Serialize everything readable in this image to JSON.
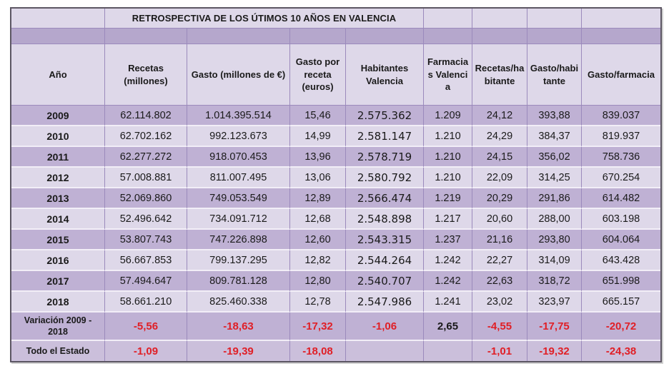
{
  "chart_data": {
    "type": "table",
    "title": "RETROSPECTIVA DE LOS ÚTIMOS 10 AÑOS EN VALENCIA",
    "columns": [
      "Año",
      "Recetas (millones)",
      "Gasto (millones de €)",
      "Gasto por receta (euros)",
      "Habitantes Valencia",
      "Farmacias Valencia",
      "Recetas/habitante",
      "Gasto/habitante",
      "Gasto/farmacia"
    ],
    "years": [
      {
        "label": "2009",
        "values": [
          "62.114.802",
          "1.014.395.514",
          "15,46",
          "2.575.362",
          "1.209",
          "24,12",
          "393,88",
          "839.037"
        ]
      },
      {
        "label": "2010",
        "values": [
          "62.702.162",
          "992.123.673",
          "14,99",
          "2.581.147",
          "1.210",
          "24,29",
          "384,37",
          "819.937"
        ]
      },
      {
        "label": "2011",
        "values": [
          "62.277.272",
          "918.070.453",
          "13,96",
          "2.578.719",
          "1.210",
          "24,15",
          "356,02",
          "758.736"
        ]
      },
      {
        "label": "2012",
        "values": [
          "57.008.881",
          "811.007.495",
          "13,06",
          "2.580.792",
          "1.210",
          "22,09",
          "314,25",
          "670.254"
        ]
      },
      {
        "label": "2013",
        "values": [
          "52.069.860",
          "749.053.549",
          "12,89",
          "2.566.474",
          "1.219",
          "20,29",
          "291,86",
          "614.482"
        ]
      },
      {
        "label": "2014",
        "values": [
          "52.496.642",
          "734.091.712",
          "12,68",
          "2.548.898",
          "1.217",
          "20,60",
          "288,00",
          "603.198"
        ]
      },
      {
        "label": "2015",
        "values": [
          "53.807.743",
          "747.226.898",
          "12,60",
          "2.543.315",
          "1.237",
          "21,16",
          "293,80",
          "604.064"
        ]
      },
      {
        "label": "2016",
        "values": [
          "56.667.853",
          "799.137.295",
          "12,82",
          "2.544.264",
          "1.242",
          "22,27",
          "314,09",
          "643.428"
        ]
      },
      {
        "label": "2017",
        "values": [
          "57.494.647",
          "809.781.128",
          "12,80",
          "2.540.707",
          "1.242",
          "22,63",
          "318,72",
          "651.998"
        ]
      },
      {
        "label": "2018",
        "values": [
          "58.661.210",
          "825.460.338",
          "12,78",
          "2.547.986",
          "1.241",
          "23,02",
          "323,97",
          "665.157"
        ]
      }
    ],
    "summary": [
      {
        "label": "Variación 2009 - 2018",
        "values": [
          "-5,56",
          "-18,63",
          "-17,32",
          "-1,06",
          "2,65",
          "-4,55",
          "-17,75",
          "-20,72"
        ]
      },
      {
        "label": "Todo el Estado",
        "values": [
          "-1,09",
          "-19,39",
          "-18,08",
          "",
          "",
          "-1,01",
          "-19,32",
          "-24,38"
        ]
      }
    ]
  },
  "colors": {
    "row_dark": "#bfb1d4",
    "row_light": "#ded8e9",
    "row_summary_final": "#cbbfdb",
    "header_band": "#b5a7cc",
    "grid_line": "#9b8abc",
    "row_divider": "#f2eef7",
    "outer_border": "#5c5663",
    "negative_value": "#e01f26",
    "text": "#1a1a1a"
  }
}
